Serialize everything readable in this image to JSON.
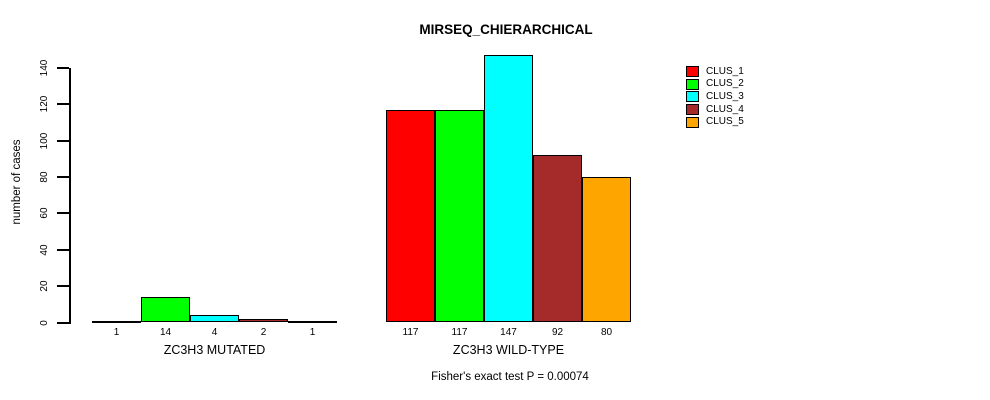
{
  "chart_data": {
    "type": "bar",
    "title": "MIRSEQ_CHIERARCHICAL",
    "ylabel": "number of cases",
    "xlabel": "",
    "caption": "Fisher's exact test P = 0.00074",
    "ylim": [
      0,
      147
    ],
    "yticks": [
      0,
      20,
      40,
      60,
      80,
      100,
      120,
      140
    ],
    "grid": false,
    "legend_position": "top-right",
    "bar_border_color": "#000000",
    "background_color": "#ffffff",
    "categories": [
      "ZC3H3 MUTATED",
      "ZC3H3 WILD-TYPE"
    ],
    "series": [
      {
        "name": "CLUS_1",
        "color": "#ff0000",
        "values": [
          1,
          117
        ]
      },
      {
        "name": "CLUS_2",
        "color": "#00ff00",
        "values": [
          14,
          117
        ]
      },
      {
        "name": "CLUS_3",
        "color": "#00ffff",
        "values": [
          4,
          147
        ]
      },
      {
        "name": "CLUS_4",
        "color": "#a52a2a",
        "values": [
          2,
          92
        ]
      },
      {
        "name": "CLUS_5",
        "color": "#ffa500",
        "values": [
          1,
          80
        ]
      }
    ]
  }
}
